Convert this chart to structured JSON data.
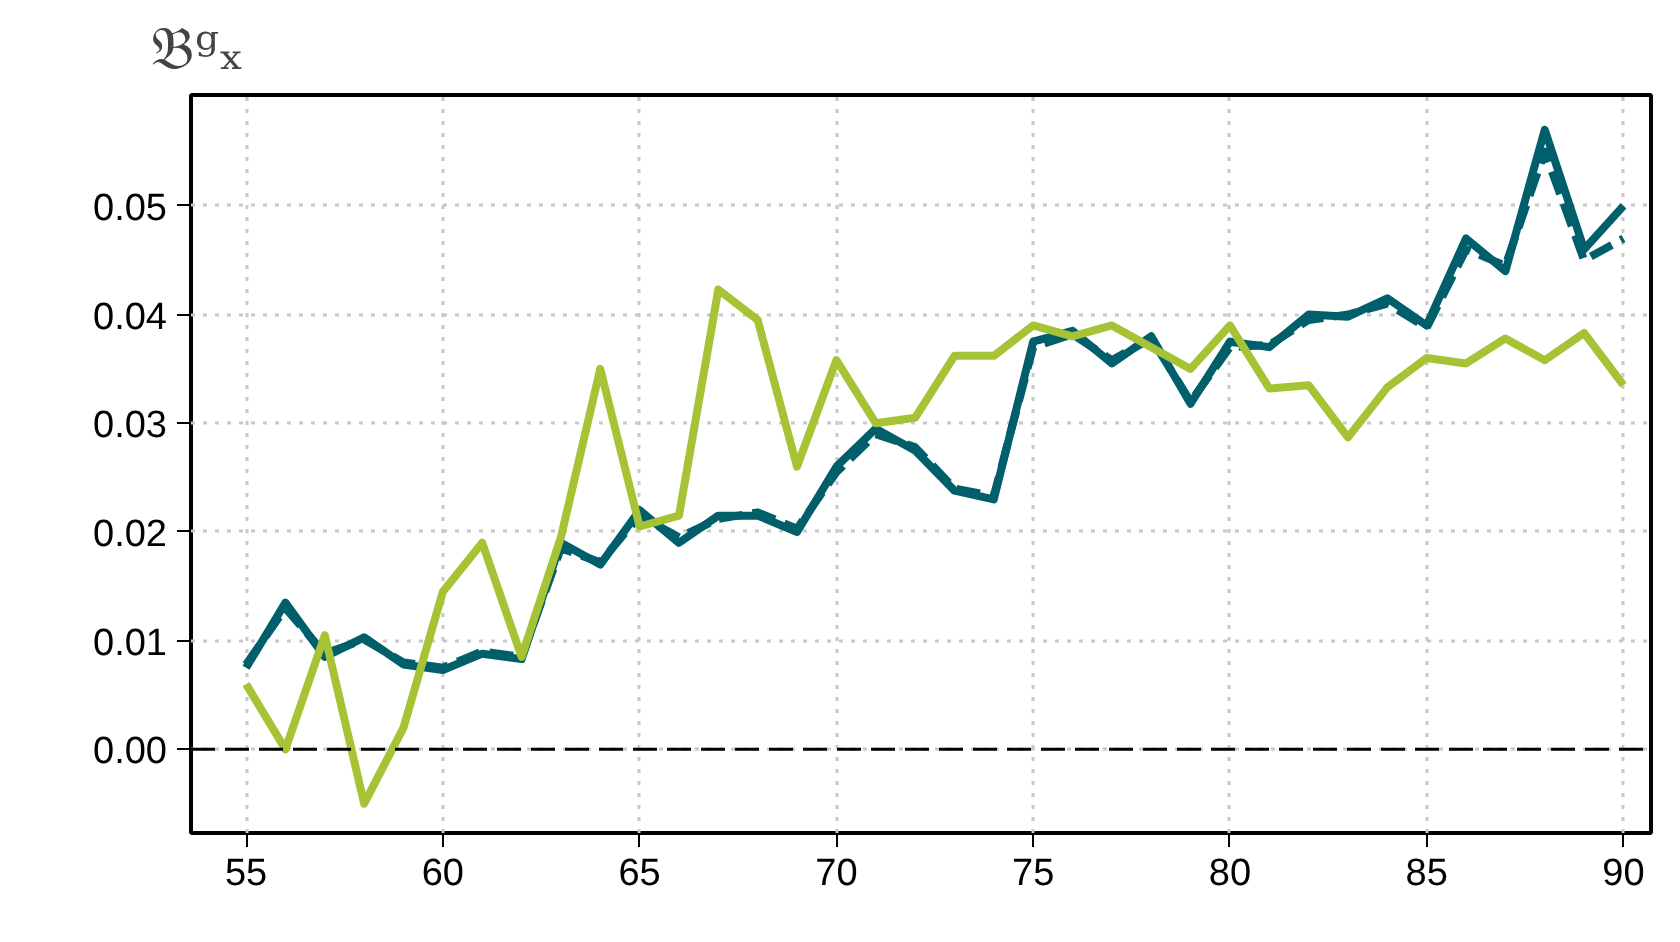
{
  "chart_data": {
    "type": "line",
    "title": "𝔅ᵍₓ",
    "x": [
      55,
      56,
      57,
      58,
      59,
      60,
      61,
      62,
      63,
      64,
      65,
      66,
      67,
      68,
      69,
      70,
      71,
      72,
      73,
      74,
      75,
      76,
      77,
      78,
      79,
      80,
      81,
      82,
      83,
      84,
      85,
      86,
      87,
      88,
      89,
      90
    ],
    "series": [
      {
        "color": "#005f6b",
        "line_style": "solid",
        "values": [
          0.0075,
          0.0135,
          0.0085,
          0.0103,
          0.0078,
          0.0073,
          0.0088,
          0.0083,
          0.019,
          0.017,
          0.022,
          0.019,
          0.0215,
          0.0215,
          0.02,
          0.026,
          0.0295,
          0.0275,
          0.0238,
          0.023,
          0.0375,
          0.0385,
          0.0355,
          0.038,
          0.0318,
          0.0375,
          0.037,
          0.04,
          0.0398,
          0.0415,
          0.039,
          0.047,
          0.044,
          0.057,
          0.046,
          0.05
        ]
      },
      {
        "color": "#005f6b",
        "line_style": "dashed",
        "values": [
          0.0078,
          0.013,
          0.0088,
          0.0101,
          0.008,
          0.0075,
          0.009,
          0.0085,
          0.0185,
          0.0172,
          0.0215,
          0.0195,
          0.0212,
          0.0218,
          0.0203,
          0.0255,
          0.029,
          0.0278,
          0.024,
          0.0233,
          0.037,
          0.0382,
          0.0358,
          0.0378,
          0.032,
          0.037,
          0.0372,
          0.0395,
          0.04,
          0.041,
          0.0388,
          0.046,
          0.0445,
          0.055,
          0.045,
          0.047
        ]
      },
      {
        "color": "#a5c334",
        "line_style": "solid",
        "values": [
          0.006,
          0.0,
          0.0105,
          -0.005,
          0.002,
          0.0145,
          0.019,
          0.0085,
          0.0195,
          0.035,
          0.0205,
          0.0215,
          0.0423,
          0.0395,
          0.026,
          0.0358,
          0.03,
          0.0305,
          0.0362,
          0.0362,
          0.039,
          0.038,
          0.039,
          0.037,
          0.035,
          0.039,
          0.0332,
          0.0335,
          0.0287,
          0.0333,
          0.036,
          0.0355,
          0.0378,
          0.0358,
          0.0383,
          0.0335
        ]
      }
    ],
    "xlim": [
      53.6,
      90.7
    ],
    "ylim": [
      -0.0077,
      0.0602
    ],
    "xticks": [
      55,
      60,
      65,
      70,
      75,
      80,
      85,
      90
    ],
    "yticks": [
      {
        "value": 0,
        "label": "0.00"
      },
      {
        "value": 0.01,
        "label": "0.01"
      },
      {
        "value": 0.02,
        "label": "0.02"
      },
      {
        "value": 0.03,
        "label": "0.03"
      },
      {
        "value": 0.04,
        "label": "0.04"
      },
      {
        "value": 0.05,
        "label": "0.05"
      }
    ],
    "ref_lines": [
      {
        "axis": "y",
        "value": 0,
        "color": "#000000",
        "line_style": "dashed"
      }
    ],
    "grid": true,
    "marker": "none"
  }
}
